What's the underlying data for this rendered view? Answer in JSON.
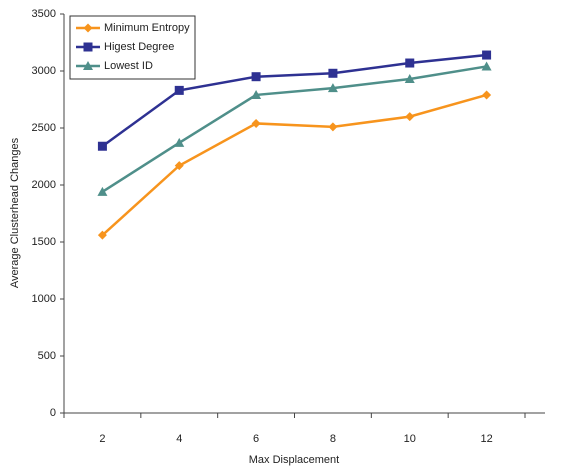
{
  "chart_data": {
    "type": "line",
    "x_label": "Max Displacement",
    "y_label": "Average Clusterhead Changes",
    "categories": [
      "2",
      "4",
      "6",
      "8",
      "10",
      "12"
    ],
    "series": [
      {
        "name": "Minimum Entropy",
        "color": "#f7941d",
        "marker": "diamond",
        "values": [
          1560,
          2170,
          2540,
          2510,
          2600,
          2790
        ]
      },
      {
        "name": "Higest Degree",
        "color": "#2e3192",
        "marker": "square",
        "values": [
          2340,
          2830,
          2950,
          2980,
          3070,
          3140
        ]
      },
      {
        "name": "Lowest ID",
        "color": "#4f8f8a",
        "marker": "triangle",
        "values": [
          1940,
          2370,
          2790,
          2850,
          2930,
          3040
        ]
      }
    ],
    "ylim": [
      0,
      3500
    ],
    "yticks": [
      0,
      500,
      1000,
      1500,
      2000,
      2500,
      3000,
      3500
    ],
    "grid": false,
    "legend": "top-left"
  }
}
